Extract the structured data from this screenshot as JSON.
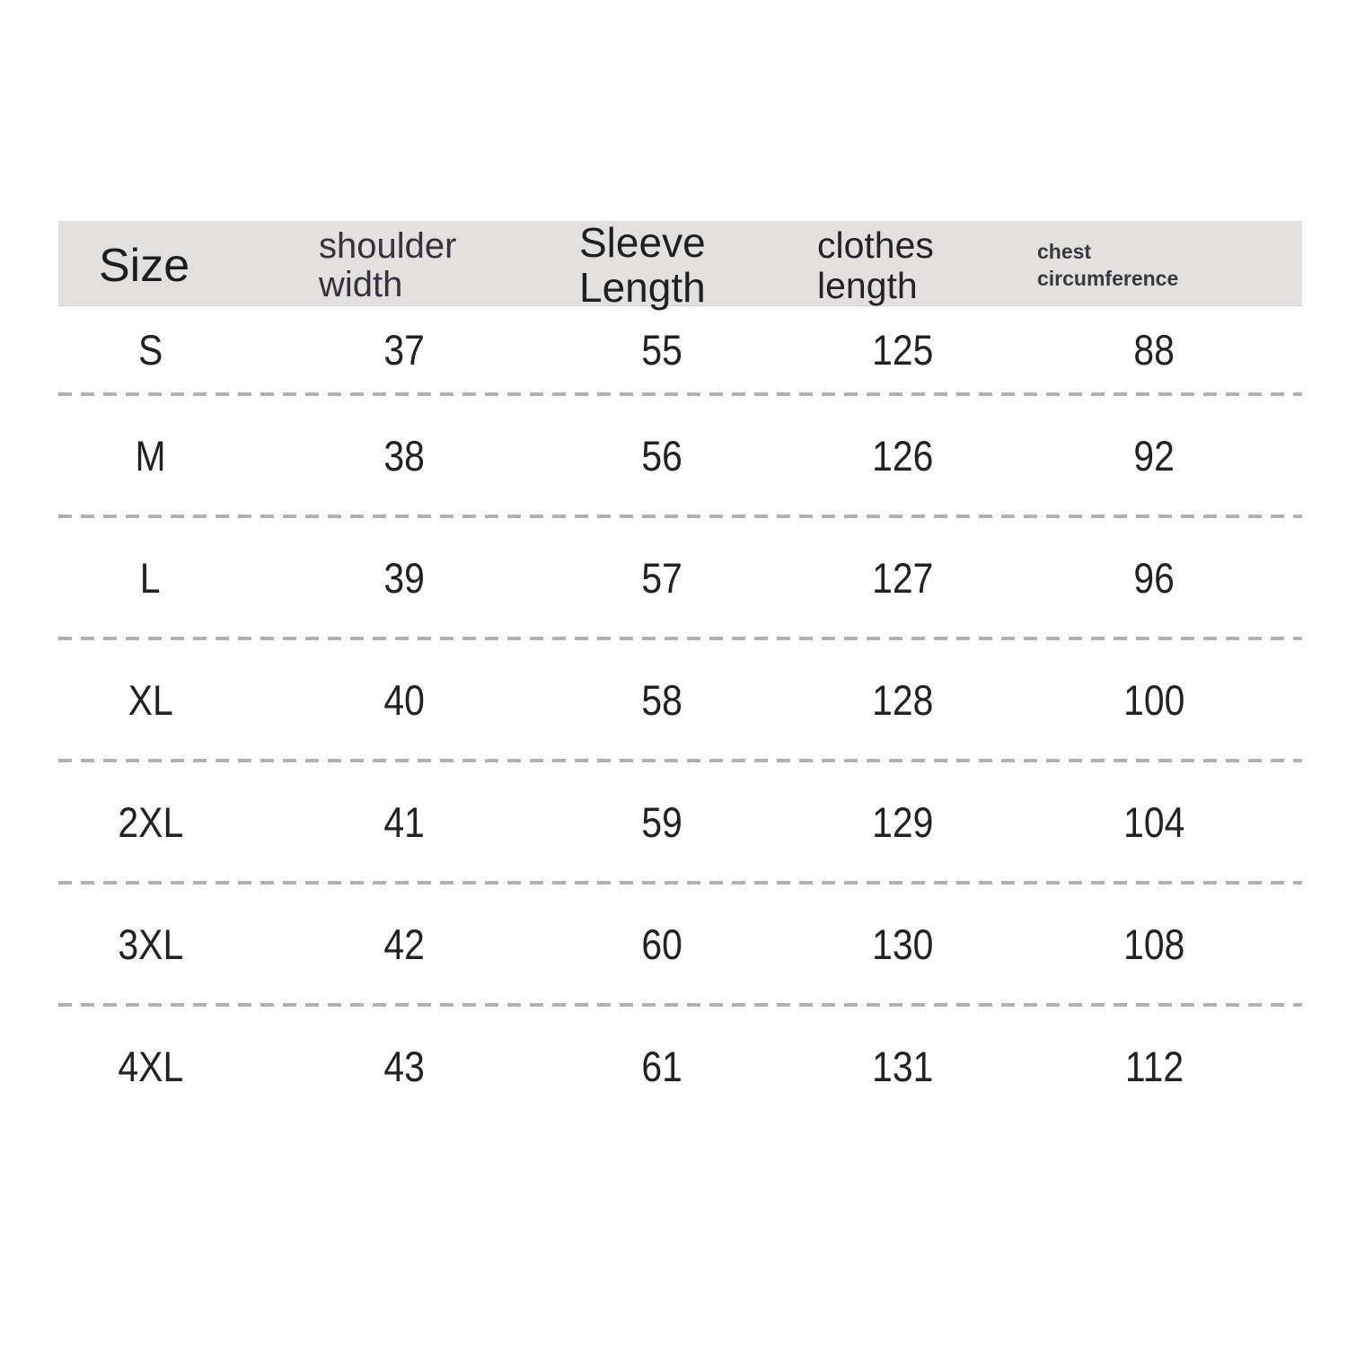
{
  "colors": {
    "header_background": "#e2e1df",
    "dash_line": "#b0b0b0",
    "text": "#222222",
    "page_background": "#ffffff"
  },
  "table": {
    "headers": [
      {
        "name": "size",
        "lines": [
          "Size"
        ]
      },
      {
        "name": "shoulder_width",
        "lines": [
          "shoulder",
          "width"
        ]
      },
      {
        "name": "sleeve_length",
        "lines": [
          "Sleeve",
          "Length"
        ]
      },
      {
        "name": "clothes_length",
        "lines": [
          "clothes",
          "length"
        ]
      },
      {
        "name": "chest_circumference",
        "lines": [
          "chest",
          "circumference"
        ]
      }
    ],
    "rows": [
      [
        "S",
        "37",
        "55",
        "125",
        "88"
      ],
      [
        "M",
        "38",
        "56",
        "126",
        "92"
      ],
      [
        "L",
        "39",
        "57",
        "127",
        "96"
      ],
      [
        "XL",
        "40",
        "58",
        "128",
        "100"
      ],
      [
        "2XL",
        "41",
        "59",
        "129",
        "104"
      ],
      [
        "3XL",
        "42",
        "60",
        "130",
        "108"
      ],
      [
        "4XL",
        "43",
        "61",
        "131",
        "112"
      ]
    ]
  }
}
